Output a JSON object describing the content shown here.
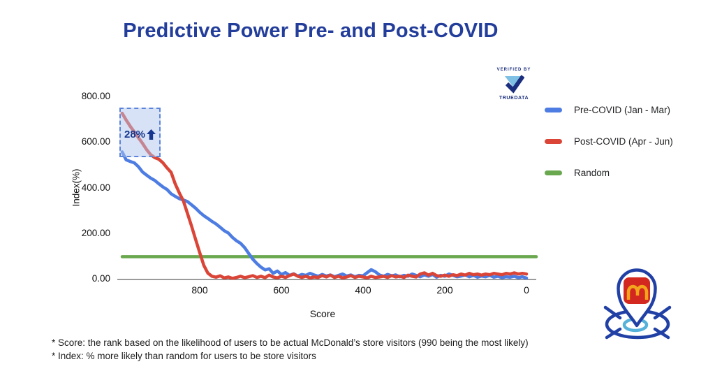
{
  "title": "Predictive Power Pre- and Post-COVID",
  "colors": {
    "title": "#233d9b",
    "truedata_navy": "#1b2f7e",
    "annotation_navy": "#16368f"
  },
  "verified_badge": {
    "top_text": "VERIFIED BY",
    "brand": "TRUEDATA",
    "logo_light_blue": "#7ec0e4",
    "logo_navy": "#1b2f7e"
  },
  "legend": {
    "items": [
      {
        "label": "Pre-COVID (Jan - Mar)",
        "color": "#4d7ce2"
      },
      {
        "label": "Post-COVID (Apr - Jun)",
        "color": "#da4537"
      },
      {
        "label": "Random",
        "color": "#6aa84f"
      }
    ]
  },
  "annotation": {
    "label": "28%",
    "arrow": "up",
    "border_color": "#5c83da",
    "fill_color": "rgba(176,198,238,0.5)",
    "text_color": "#16368f"
  },
  "chart_data": {
    "type": "line",
    "xlabel": "Score",
    "ylabel": "Index(%)",
    "x_axis": {
      "ticks": [
        800,
        600,
        400,
        200,
        0
      ],
      "tick_labels": [
        "800",
        "600",
        "400",
        "200",
        "0"
      ],
      "reversed": true,
      "range": [
        990,
        0
      ]
    },
    "y_axis": {
      "ticks": [
        800,
        600,
        400,
        200,
        0
      ],
      "tick_labels": [
        "800.00",
        "600.00",
        "400.00",
        "200.00",
        "0.00"
      ],
      "range": [
        0,
        800
      ]
    },
    "x_start": 990,
    "x_step": -10,
    "series": [
      {
        "name": "Pre-COVID (Jan - Mar)",
        "color": "#4d7ce2",
        "values": [
          560,
          525,
          518,
          512,
          495,
          472,
          458,
          445,
          435,
          420,
          406,
          395,
          376,
          365,
          355,
          349,
          342,
          328,
          313,
          295,
          280,
          268,
          255,
          244,
          229,
          214,
          204,
          185,
          170,
          159,
          140,
          114,
          89,
          70,
          54,
          42,
          47,
          27,
          37,
          22,
          30,
          18,
          25,
          15,
          22,
          18,
          27,
          20,
          14,
          22,
          15,
          20,
          12,
          18,
          24,
          15,
          20,
          12,
          18,
          16,
          30,
          43,
          34,
          20,
          14,
          22,
          16,
          20,
          12,
          18,
          14,
          24,
          18,
          12,
          20,
          14,
          22,
          10,
          18,
          14,
          24,
          18,
          12,
          15,
          20,
          12,
          18,
          10,
          15,
          12,
          18,
          10,
          14,
          8,
          12,
          10,
          14,
          8,
          12,
          6
        ]
      },
      {
        "name": "Post-COVID (Apr - Jun)",
        "color": "#da4537",
        "values": [
          730,
          700,
          672,
          648,
          622,
          598,
          570,
          548,
          535,
          528,
          512,
          490,
          470,
          420,
          380,
          345,
          290,
          235,
          175,
          118,
          62,
          28,
          14,
          10,
          16,
          7,
          11,
          5,
          9,
          14,
          8,
          12,
          17,
          9,
          14,
          8,
          19,
          11,
          7,
          14,
          9,
          17,
          24,
          14,
          9,
          14,
          7,
          11,
          9,
          17,
          11,
          19,
          9,
          14,
          7,
          11,
          17,
          9,
          14,
          11,
          7,
          14,
          9,
          11,
          14,
          9,
          17,
          11,
          14,
          9,
          19,
          14,
          11,
          24,
          29,
          19,
          27,
          17,
          14,
          19,
          14,
          21,
          17,
          24,
          19,
          27,
          21,
          24,
          19,
          24,
          21,
          27,
          24,
          21,
          27,
          24,
          29,
          24,
          27,
          24
        ]
      },
      {
        "name": "Random",
        "color": "#6aa84f",
        "constant": 100
      }
    ]
  },
  "footnotes": [
    "* Score: the rank based on the likelihood of users to be actual McDonald’s store visitors (990 being the most likely)",
    "* Index: % more likely than random for users to be store visitors"
  ],
  "brand_icon": {
    "name": "mcdonalds-location-pin",
    "pin_blue": "#2140a5",
    "badge_red": "#d3281f",
    "arches_gold": "#f2a51c",
    "halo_blue": "#56b2da"
  }
}
